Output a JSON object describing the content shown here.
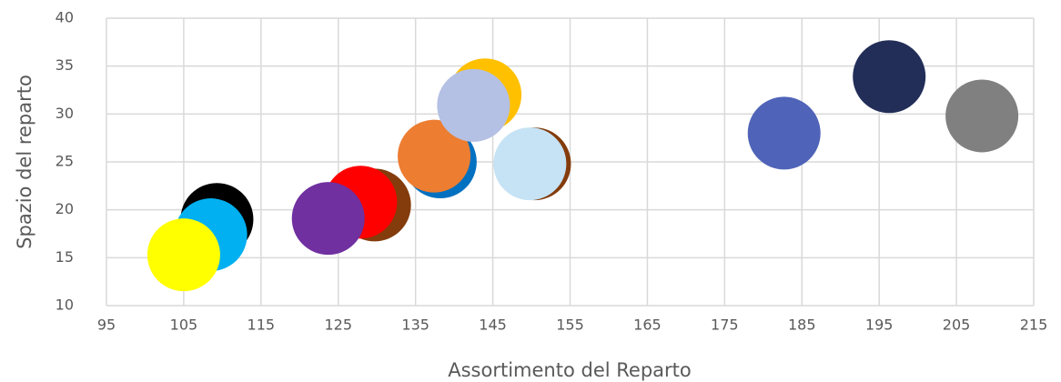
{
  "chart_data": {
    "type": "bubble",
    "x_label": "Assortimento del Reparto",
    "y_label": "Spazio del reparto",
    "x": [
      109.3,
      108.5,
      105,
      129.7,
      127.9,
      123.7,
      138.2,
      137.4,
      144.0,
      142.5,
      150.4,
      149.8,
      182.7,
      196.3,
      208.3
    ],
    "values": [
      19.0,
      17.4,
      15.3,
      20.5,
      20.8,
      19.1,
      25.0,
      25.6,
      32.0,
      30.9,
      24.8,
      24.8,
      28.0,
      33.9,
      29.8
    ],
    "sizes": [
      1,
      1,
      1,
      1,
      1,
      1,
      1,
      1,
      1,
      1,
      1,
      1,
      1,
      1,
      1
    ],
    "colors": [
      "#000000",
      "#00b0f0",
      "#ffff00",
      "#843c0c",
      "#ff0000",
      "#7030a0",
      "#0070c0",
      "#ed7d31",
      "#ffc000",
      "#b4c0e4",
      "#843c0c",
      "#c5e3f5",
      "#4f64b8",
      "#222e58",
      "#808080"
    ],
    "xlim": [
      95,
      215
    ],
    "xticks": [
      95,
      105,
      115,
      125,
      135,
      145,
      155,
      165,
      175,
      185,
      195,
      205,
      215
    ],
    "ylim": [
      10,
      40
    ],
    "yticks": [
      10,
      15,
      20,
      25,
      30,
      35,
      40
    ],
    "grid": true
  }
}
